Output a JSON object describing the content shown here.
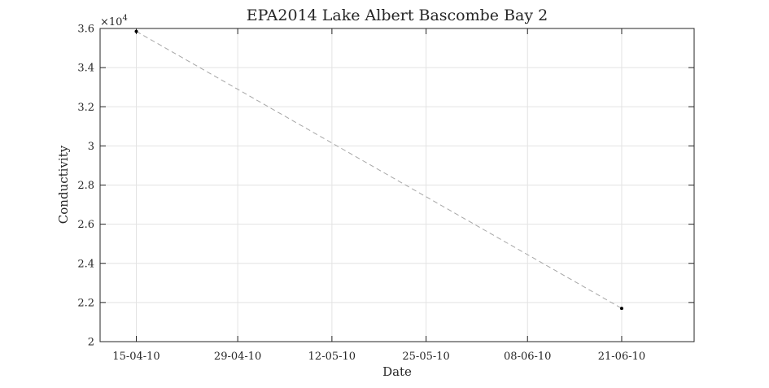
{
  "chart_data": {
    "type": "line",
    "title": "EPA2014 Lake Albert Bascombe Bay 2",
    "xlabel": "Date",
    "ylabel": "Conductivity",
    "y_exponent_label": "×10",
    "y_exponent_power": "4",
    "x_tick_labels": [
      "15-04-10",
      "29-04-10",
      "12-05-10",
      "25-05-10",
      "08-06-10",
      "21-06-10"
    ],
    "x_tick_dates": [
      "2010-04-15",
      "2010-04-29",
      "2010-05-12",
      "2010-05-25",
      "2010-06-08",
      "2010-06-21"
    ],
    "y_tick_labels": [
      "2",
      "2.2",
      "2.4",
      "2.6",
      "2.8",
      "3",
      "3.2",
      "3.4",
      "3.6"
    ],
    "y_tick_values": [
      20000,
      22000,
      24000,
      26000,
      28000,
      30000,
      32000,
      34000,
      36000
    ],
    "xlim": [
      "2010-04-10",
      "2010-07-01"
    ],
    "ylim": [
      20000,
      36000
    ],
    "grid": true,
    "series": [
      {
        "x": [
          "2010-04-15",
          "2010-06-21"
        ],
        "y": [
          35850,
          21700
        ],
        "line_style": "dashed",
        "line_color": "#a6a6a6",
        "marker_color": "#000000"
      }
    ]
  }
}
